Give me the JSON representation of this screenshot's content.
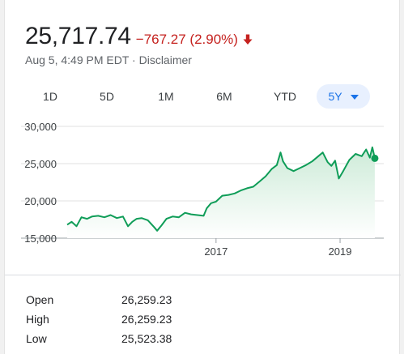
{
  "quote": {
    "price": "25,717.74",
    "change": "−767.27 (2.90%)",
    "direction_icon": "down-arrow-icon",
    "timestamp": "Aug 5, 4:49 PM EDT",
    "separator": " · ",
    "disclaimer": "Disclaimer"
  },
  "ranges": [
    {
      "label": "1D",
      "selected": false
    },
    {
      "label": "5D",
      "selected": false
    },
    {
      "label": "1M",
      "selected": false
    },
    {
      "label": "6M",
      "selected": false
    },
    {
      "label": "YTD",
      "selected": false
    },
    {
      "label": "5Y",
      "selected": true
    }
  ],
  "colors": {
    "down": "#c5221f",
    "line": "#0f9d58",
    "fill_top": "#cdebd8",
    "accent": "#1a73e8",
    "grid": "#e0e0e0"
  },
  "chart_data": {
    "type": "area",
    "y_ticks": [
      15000,
      20000,
      25000,
      30000
    ],
    "y_tick_labels": [
      "15,000",
      "20,000",
      "25,000",
      "30,000"
    ],
    "ylim": [
      15000,
      30000
    ],
    "xlim": [
      2014.6,
      2019.6
    ],
    "x_ticks": [
      2017,
      2019
    ],
    "x_tick_labels": [
      "2017",
      "2019"
    ],
    "series": [
      {
        "x": [
          2014.6,
          2014.67,
          2014.75,
          2014.83,
          2014.92,
          2015.0,
          2015.1,
          2015.2,
          2015.3,
          2015.4,
          2015.5,
          2015.58,
          2015.65,
          2015.72,
          2015.8,
          2015.9,
          2016.0,
          2016.05,
          2016.12,
          2016.2,
          2016.3,
          2016.4,
          2016.5,
          2016.6,
          2016.7,
          2016.8,
          2016.85,
          2016.92,
          2017.0,
          2017.1,
          2017.2,
          2017.3,
          2017.4,
          2017.5,
          2017.6,
          2017.7,
          2017.8,
          2017.9,
          2017.98,
          2018.04,
          2018.08,
          2018.15,
          2018.25,
          2018.35,
          2018.45,
          2018.55,
          2018.65,
          2018.72,
          2018.8,
          2018.86,
          2018.92,
          2018.98,
          2019.05,
          2019.15,
          2019.25,
          2019.35,
          2019.42,
          2019.48,
          2019.52,
          2019.56
        ],
        "values": [
          16800,
          17200,
          16600,
          17800,
          17600,
          17900,
          18000,
          17800,
          18100,
          17700,
          17900,
          16600,
          17200,
          17600,
          17700,
          17400,
          16500,
          16000,
          16700,
          17600,
          17900,
          17800,
          18400,
          18200,
          18100,
          18000,
          19000,
          19700,
          19900,
          20700,
          20800,
          21000,
          21400,
          21700,
          21900,
          22600,
          23300,
          24300,
          24800,
          26500,
          25300,
          24400,
          24000,
          24400,
          24800,
          25300,
          26000,
          26500,
          25200,
          24700,
          25400,
          23000,
          24000,
          25500,
          26300,
          26000,
          26900,
          25800,
          27200,
          25717.74
        ]
      }
    ]
  },
  "stats": [
    {
      "label": "Open",
      "value": "26,259.23"
    },
    {
      "label": "High",
      "value": "26,259.23"
    },
    {
      "label": "Low",
      "value": "25,523.38"
    }
  ]
}
